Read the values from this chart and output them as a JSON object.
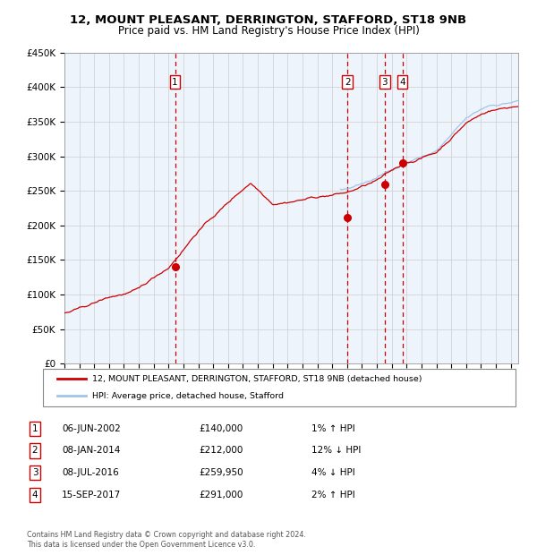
{
  "title1": "12, MOUNT PLEASANT, DERRINGTON, STAFFORD, ST18 9NB",
  "title2": "Price paid vs. HM Land Registry's House Price Index (HPI)",
  "legend_line1": "12, MOUNT PLEASANT, DERRINGTON, STAFFORD, ST18 9NB (detached house)",
  "legend_line2": "HPI: Average price, detached house, Stafford",
  "hpi_color": "#a0c4e8",
  "price_color": "#cc0000",
  "bg_color": "#eef4fb",
  "grid_color": "#cccccc",
  "sale_dates": [
    2002.43,
    2014.03,
    2016.52,
    2017.71
  ],
  "sale_prices": [
    140000,
    212000,
    259950,
    291000
  ],
  "sale_labels": [
    "1",
    "2",
    "3",
    "4"
  ],
  "hpi_start_year": 2013.5,
  "table_entries": [
    {
      "num": "1",
      "date": "06-JUN-2002",
      "price": "£140,000",
      "hpi": "1% ↑ HPI"
    },
    {
      "num": "2",
      "date": "08-JAN-2014",
      "price": "£212,000",
      "hpi": "12% ↓ HPI"
    },
    {
      "num": "3",
      "date": "08-JUL-2016",
      "price": "£259,950",
      "hpi": "4% ↓ HPI"
    },
    {
      "num": "4",
      "date": "15-SEP-2017",
      "price": "£291,000",
      "hpi": "2% ↑ HPI"
    }
  ],
  "footer": "Contains HM Land Registry data © Crown copyright and database right 2024.\nThis data is licensed under the Open Government Licence v3.0.",
  "ylim": [
    0,
    450000
  ],
  "yticks": [
    0,
    50000,
    100000,
    150000,
    200000,
    250000,
    300000,
    350000,
    400000,
    450000
  ],
  "xlim_start": 1995.0,
  "xlim_end": 2025.5
}
